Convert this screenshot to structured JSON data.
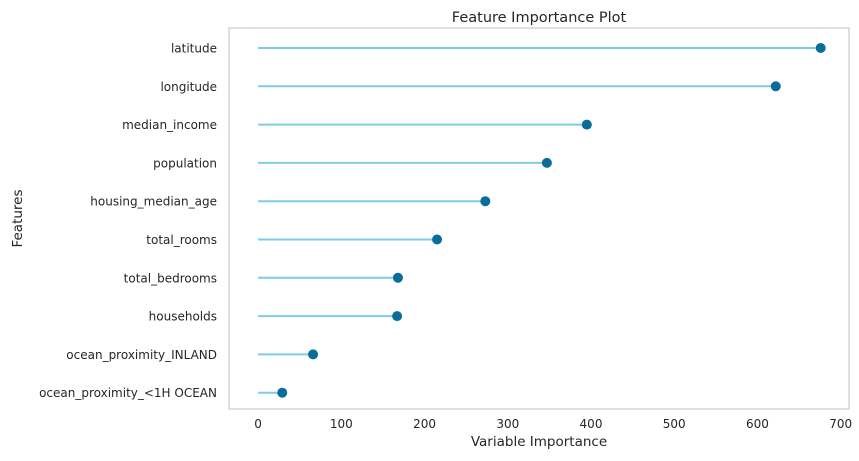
{
  "chart_data": {
    "type": "lollipop",
    "title": "Feature Importance Plot",
    "xlabel": "Variable Importance",
    "ylabel": "Features",
    "xlim": [
      -35,
      710
    ],
    "xticks": [
      0,
      100,
      200,
      300,
      400,
      500,
      600,
      700
    ],
    "grid": false,
    "categories": [
      "latitude",
      "longitude",
      "median_income",
      "population",
      "housing_median_age",
      "total_rooms",
      "total_bedrooms",
      "households",
      "ocean_proximity_INLAND",
      "ocean_proximity_<1H OCEAN"
    ],
    "values": [
      676,
      622,
      395,
      347,
      273,
      215,
      168,
      167,
      66,
      29
    ],
    "colors": {
      "stem": "#7fcbe6",
      "marker": "#0a6d99",
      "frame": "#cccccc",
      "text": "#262626"
    }
  }
}
